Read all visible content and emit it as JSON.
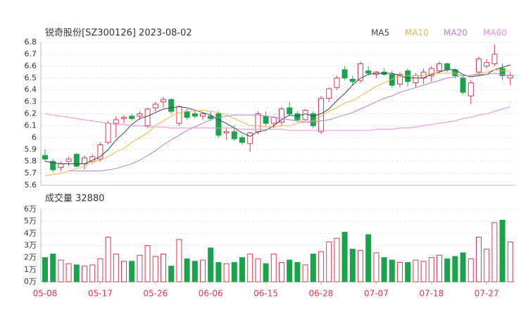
{
  "chart_data": [
    {
      "type": "candlestick",
      "title": "锐奇股份[SZ300126] 2023-08-02",
      "open": [
        5.85,
        5.8,
        5.75,
        5.8,
        5.86,
        5.78,
        5.8,
        5.82,
        5.96,
        6.12,
        6.16,
        6.18,
        6.18,
        6.1,
        6.25,
        6.3,
        6.32,
        6.12,
        6.22,
        6.2,
        6.18,
        6.18,
        6.2,
        6.04,
        6.05,
        6.0,
        5.95,
        6.05,
        6.18,
        6.12,
        6.13,
        6.25,
        6.2,
        6.15,
        6.2,
        6.05,
        6.33,
        6.42,
        6.57,
        6.49,
        6.48,
        6.56,
        6.53,
        6.55,
        6.53,
        6.45,
        6.56,
        6.46,
        6.5,
        6.52,
        6.56,
        6.62,
        6.57,
        6.5,
        6.35,
        6.55,
        6.6,
        6.62,
        6.58,
        6.5
      ],
      "high": [
        5.9,
        5.82,
        5.8,
        5.84,
        5.87,
        5.85,
        5.86,
        5.96,
        6.14,
        6.18,
        6.19,
        6.2,
        6.22,
        6.25,
        6.3,
        6.34,
        6.33,
        6.27,
        6.24,
        6.22,
        6.21,
        6.22,
        6.22,
        6.08,
        6.1,
        6.02,
        6.05,
        6.22,
        6.22,
        6.18,
        6.26,
        6.3,
        6.22,
        6.24,
        6.22,
        6.35,
        6.42,
        6.52,
        6.6,
        6.52,
        6.64,
        6.6,
        6.56,
        6.58,
        6.56,
        6.55,
        6.58,
        6.54,
        6.58,
        6.6,
        6.64,
        6.63,
        6.58,
        6.52,
        6.48,
        6.68,
        6.66,
        6.78,
        6.62,
        6.55
      ],
      "low": [
        5.8,
        5.71,
        5.72,
        5.76,
        5.75,
        5.73,
        5.78,
        5.8,
        5.94,
        6.0,
        6.12,
        6.15,
        6.15,
        6.08,
        6.22,
        6.25,
        6.2,
        6.1,
        6.15,
        6.16,
        6.15,
        6.14,
        6.0,
        5.98,
        5.97,
        5.94,
        5.88,
        6.03,
        6.1,
        6.08,
        6.1,
        6.18,
        6.13,
        6.14,
        6.08,
        6.03,
        6.3,
        6.4,
        6.48,
        6.44,
        6.46,
        6.52,
        6.5,
        6.52,
        6.42,
        6.42,
        6.43,
        6.42,
        6.45,
        6.47,
        6.54,
        6.55,
        6.5,
        6.36,
        6.28,
        6.52,
        6.58,
        6.6,
        6.48,
        6.44
      ],
      "close": [
        5.82,
        5.73,
        5.78,
        5.82,
        5.76,
        5.83,
        5.84,
        5.94,
        6.12,
        6.15,
        6.17,
        6.16,
        6.2,
        6.24,
        6.28,
        6.32,
        6.22,
        6.26,
        6.17,
        6.18,
        6.2,
        6.16,
        6.02,
        6.05,
        5.99,
        5.96,
        6.04,
        6.2,
        6.12,
        6.17,
        6.24,
        6.2,
        6.15,
        6.23,
        6.1,
        6.33,
        6.41,
        6.5,
        6.5,
        6.47,
        6.62,
        6.54,
        6.55,
        6.53,
        6.44,
        6.53,
        6.47,
        6.52,
        6.55,
        6.58,
        6.62,
        6.57,
        6.52,
        6.38,
        6.46,
        6.66,
        6.63,
        6.7,
        6.52,
        6.52
      ],
      "series": [
        {
          "name": "MA5",
          "color": "#3b3f5c",
          "values": [
            5.8,
            5.79,
            5.78,
            5.78,
            5.78,
            5.78,
            5.81,
            5.84,
            5.9,
            5.98,
            6.04,
            6.11,
            6.16,
            6.18,
            6.21,
            6.24,
            6.25,
            6.26,
            6.25,
            6.23,
            6.21,
            6.19,
            6.15,
            6.12,
            6.08,
            6.04,
            6.01,
            6.05,
            6.06,
            6.1,
            6.15,
            6.19,
            6.18,
            6.2,
            6.18,
            6.2,
            6.24,
            6.31,
            6.37,
            6.44,
            6.5,
            6.53,
            6.54,
            6.54,
            6.54,
            6.52,
            6.5,
            6.5,
            6.5,
            6.53,
            6.55,
            6.57,
            6.57,
            6.53,
            6.51,
            6.52,
            6.53,
            6.57,
            6.59,
            6.61
          ]
        },
        {
          "name": "MA10",
          "color": "#f2b444",
          "values": [
            5.68,
            5.69,
            5.7,
            5.72,
            5.74,
            5.76,
            5.8,
            5.81,
            5.84,
            5.88,
            5.91,
            5.96,
            6.0,
            6.04,
            6.1,
            6.14,
            6.18,
            6.21,
            6.22,
            6.22,
            6.23,
            6.22,
            6.21,
            6.19,
            6.16,
            6.13,
            6.1,
            6.1,
            6.09,
            6.09,
            6.1,
            6.1,
            6.12,
            6.13,
            6.14,
            6.18,
            6.22,
            6.25,
            6.29,
            6.31,
            6.35,
            6.39,
            6.43,
            6.46,
            6.49,
            6.51,
            6.52,
            6.52,
            6.52,
            6.54,
            6.54,
            6.54,
            6.54,
            6.52,
            6.52,
            6.54,
            6.55,
            6.57,
            6.56,
            6.56
          ]
        },
        {
          "name": "MA20",
          "color": "#b57ee0",
          "values": [
            null,
            null,
            null,
            5.72,
            5.72,
            5.72,
            5.72,
            5.72,
            5.73,
            5.74,
            5.76,
            5.78,
            5.81,
            5.85,
            5.89,
            5.94,
            5.98,
            6.02,
            6.06,
            6.09,
            6.12,
            6.15,
            6.17,
            6.18,
            6.19,
            6.19,
            6.19,
            6.19,
            6.18,
            6.17,
            6.16,
            6.15,
            6.14,
            6.13,
            6.13,
            6.14,
            6.15,
            6.17,
            6.19,
            6.21,
            6.24,
            6.27,
            6.3,
            6.33,
            6.35,
            6.38,
            6.4,
            6.42,
            6.44,
            6.46,
            6.48,
            6.5,
            6.51,
            6.52,
            6.52,
            6.53,
            6.53,
            6.54,
            6.53,
            6.52
          ]
        },
        {
          "name": "MA60",
          "color": "#ea8fd9",
          "values": [
            6.2,
            6.19,
            6.18,
            6.17,
            6.16,
            6.15,
            6.14,
            6.13,
            6.12,
            6.11,
            6.11,
            6.1,
            6.1,
            6.09,
            6.09,
            6.09,
            6.08,
            6.08,
            6.08,
            6.08,
            6.08,
            6.08,
            6.08,
            6.08,
            6.08,
            6.07,
            6.07,
            6.07,
            6.07,
            6.07,
            6.07,
            6.06,
            6.06,
            6.06,
            6.06,
            6.06,
            6.06,
            6.06,
            6.06,
            6.06,
            6.06,
            6.06,
            6.07,
            6.07,
            6.07,
            6.08,
            6.08,
            6.09,
            6.1,
            6.11,
            6.12,
            6.13,
            6.14,
            6.16,
            6.17,
            6.19,
            6.2,
            6.22,
            6.24,
            6.26
          ]
        }
      ],
      "up_color": "#e8384f",
      "down_color": "#1ba34a",
      "ylim": [
        5.6,
        6.8
      ],
      "yticks": [
        5.6,
        5.7,
        5.8,
        5.9,
        6,
        6.1,
        6.2,
        6.3,
        6.4,
        6.5,
        6.6,
        6.7,
        6.8
      ],
      "grid": true
    },
    {
      "type": "bar",
      "title": "成交量 32880",
      "categories": [
        "05-08",
        null,
        null,
        null,
        null,
        null,
        null,
        "05-17",
        null,
        null,
        null,
        null,
        null,
        null,
        "05-26",
        null,
        null,
        null,
        null,
        null,
        null,
        "06-06",
        null,
        null,
        null,
        null,
        null,
        null,
        "06-15",
        null,
        null,
        null,
        null,
        null,
        null,
        "06-28",
        null,
        null,
        null,
        null,
        null,
        null,
        "07-07",
        null,
        null,
        null,
        null,
        null,
        null,
        "07-18",
        null,
        null,
        null,
        null,
        null,
        null,
        "07-27",
        null,
        null,
        null
      ],
      "values": [
        2.0,
        2.3,
        1.8,
        1.5,
        1.4,
        1.3,
        1.4,
        1.9,
        3.7,
        2.3,
        1.7,
        1.7,
        2.2,
        3.0,
        2.1,
        2.3,
        1.3,
        3.5,
        1.9,
        1.7,
        1.8,
        2.8,
        1.6,
        1.5,
        1.6,
        2.0,
        2.3,
        1.9,
        1.5,
        2.3,
        1.6,
        1.8,
        1.6,
        1.4,
        2.3,
        2.5,
        3.3,
        3.6,
        4.1,
        2.7,
        2.6,
        3.9,
        2.4,
        2.0,
        1.8,
        1.6,
        1.6,
        1.8,
        1.7,
        2.0,
        2.2,
        1.9,
        2.1,
        2.4,
        1.9,
        3.7,
        2.7,
        4.9,
        5.1,
        3.288
      ],
      "ylim": [
        0,
        6
      ],
      "yticks": [
        {
          "value": 0,
          "label": "0万"
        },
        {
          "value": 1,
          "label": "1万"
        },
        {
          "value": 2,
          "label": "2万"
        },
        {
          "value": 3,
          "label": "3万"
        },
        {
          "value": 4,
          "label": "4万"
        },
        {
          "value": 5,
          "label": "5万"
        },
        {
          "value": 6,
          "label": "6万"
        }
      ],
      "grid": true
    }
  ]
}
